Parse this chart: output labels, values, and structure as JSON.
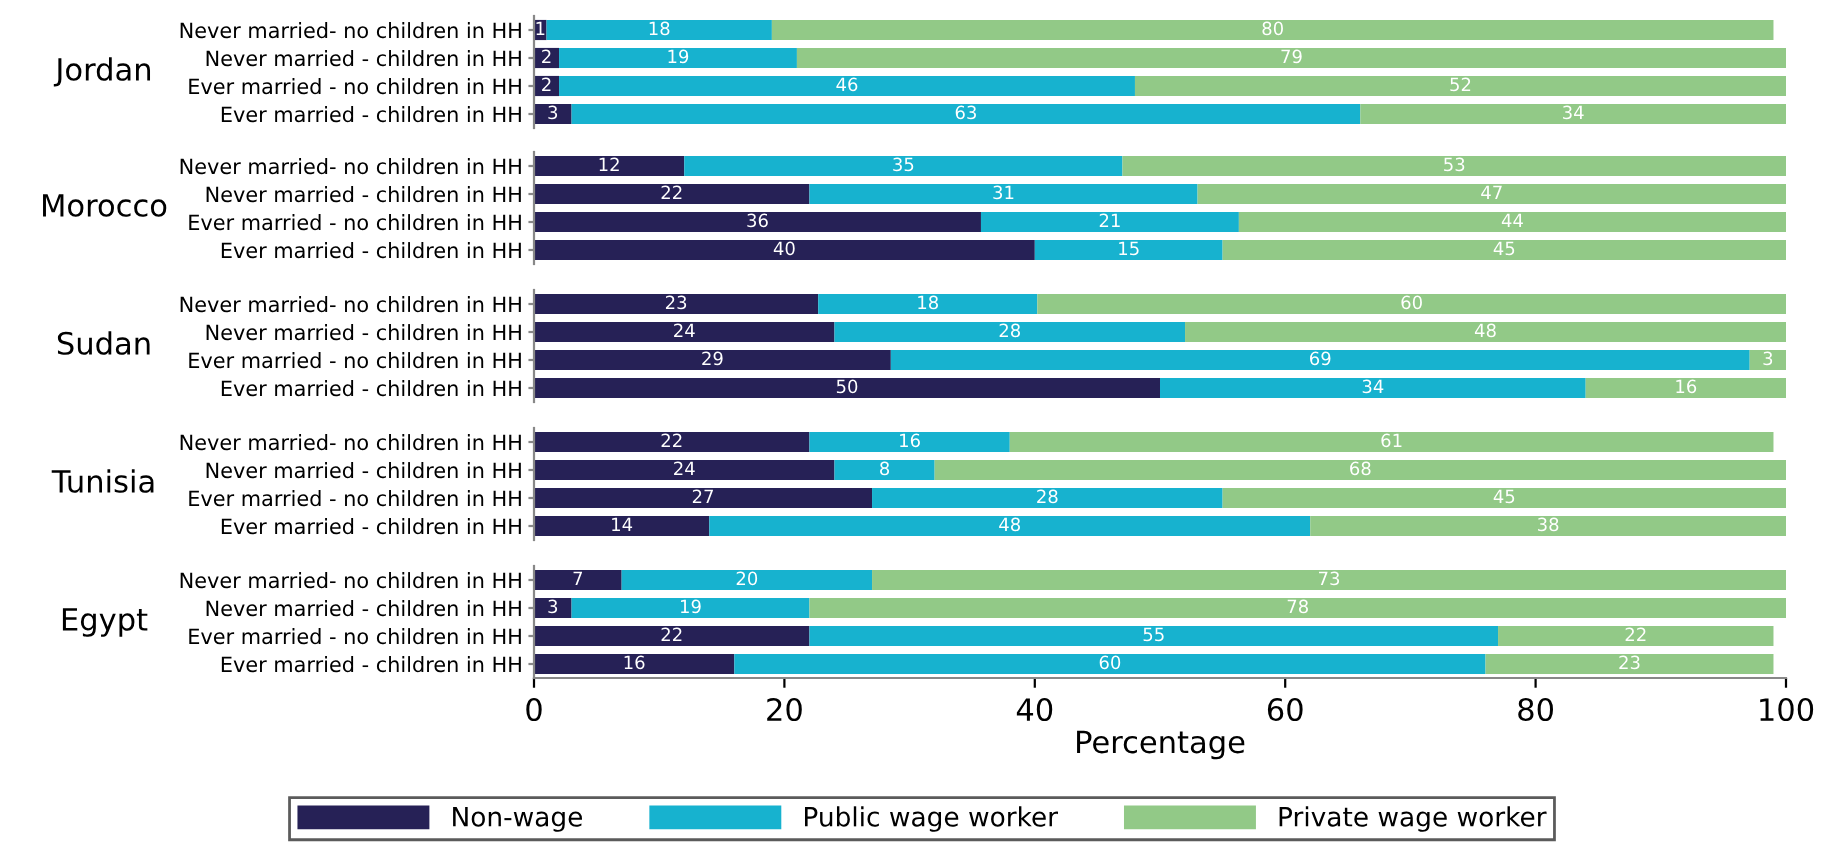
{
  "chart_data": [
    {
      "type": "bar",
      "orientation": "horizontal",
      "stacked": true,
      "title": "Jordan",
      "categories": [
        "Never married- no children in HH",
        "Never married - children in HH",
        "Ever married - no children in HH",
        "Ever married - children in HH"
      ],
      "series": [
        {
          "color": "#262156",
          "values": [
            1,
            2,
            2,
            3
          ]
        },
        {
          "color": "#17b2cf",
          "values": [
            18,
            19,
            46,
            63
          ]
        },
        {
          "color": "#92c987",
          "values": [
            80,
            79,
            52,
            34
          ]
        }
      ],
      "data_labels": true,
      "xlim": [
        0,
        100
      ],
      "tick_labels": "y"
    },
    {
      "type": "bar",
      "orientation": "horizontal",
      "stacked": true,
      "title": "Morocco",
      "categories": [
        "Never married- no children in HH",
        "Never married - children in HH",
        "Ever married - no children in HH",
        "Ever married - children in HH"
      ],
      "series": [
        {
          "color": "#262156",
          "values": [
            12,
            22,
            35.7,
            40
          ],
          "value_labels": [
            "12",
            "22",
            "36",
            "40"
          ]
        },
        {
          "color": "#17b2cf",
          "values": [
            35,
            31,
            20.6,
            15
          ],
          "value_labels": [
            "35",
            "31",
            "21",
            "15"
          ]
        },
        {
          "color": "#92c987",
          "values": [
            53,
            47,
            43.7,
            45
          ],
          "value_labels": [
            "53",
            "47",
            "44",
            "45"
          ]
        }
      ],
      "xlim": [
        0,
        100
      ],
      "tick_labels": "y"
    },
    {
      "type": "bar",
      "orientation": "horizontal",
      "stacked": true,
      "title": "Sudan",
      "categories": [
        "Never married- no children in HH",
        "Never married - children in HH",
        "Ever married - no children in HH",
        "Ever married - children in HH"
      ],
      "series": [
        {
          "color": "#262156",
          "values": [
            22.7,
            24,
            28.5,
            50
          ],
          "value_labels": [
            "23",
            "24",
            "29",
            "50"
          ]
        },
        {
          "color": "#17b2cf",
          "values": [
            17.5,
            28,
            68.6,
            34
          ],
          "value_labels": [
            "18",
            "28",
            "69",
            "34"
          ]
        },
        {
          "color": "#92c987",
          "values": [
            59.8,
            48,
            2.9,
            16
          ],
          "value_labels": [
            "60",
            "48",
            "3",
            "16"
          ]
        }
      ],
      "xlim": [
        0,
        100
      ],
      "tick_labels": "y"
    },
    {
      "type": "bar",
      "orientation": "horizontal",
      "stacked": true,
      "title": "Tunisia",
      "categories": [
        "Never married- no children in HH",
        "Never married - children in HH",
        "Ever married - no children in HH",
        "Ever married - children in HH"
      ],
      "series": [
        {
          "color": "#262156",
          "values": [
            22,
            24,
            27,
            14
          ]
        },
        {
          "color": "#17b2cf",
          "values": [
            16,
            8,
            28,
            48
          ]
        },
        {
          "color": "#92c987",
          "values": [
            61,
            68,
            45,
            38
          ]
        }
      ],
      "data_labels": true,
      "xlim": [
        0,
        100
      ],
      "tick_labels": "y"
    },
    {
      "type": "bar",
      "orientation": "horizontal",
      "stacked": true,
      "title": "Egypt",
      "categories": [
        "Never married- no children in HH",
        "Never married - children in HH",
        "Ever married - no children in HH",
        "Ever married - children in HH"
      ],
      "series": [
        {
          "name": "Non-wage",
          "color": "#262156",
          "values": [
            7,
            3,
            22,
            16
          ]
        },
        {
          "name": "Public wage worker",
          "color": "#17b2cf",
          "values": [
            20,
            19,
            55,
            60
          ]
        },
        {
          "name": "Private wage worker",
          "color": "#92c987",
          "values": [
            73,
            78,
            22,
            23
          ]
        }
      ],
      "data_labels": true,
      "xlim": [
        0,
        100
      ],
      "xticks": [
        0,
        20,
        40,
        60,
        80,
        100
      ],
      "xlabel": "Percentage",
      "legend": "bottom"
    }
  ]
}
